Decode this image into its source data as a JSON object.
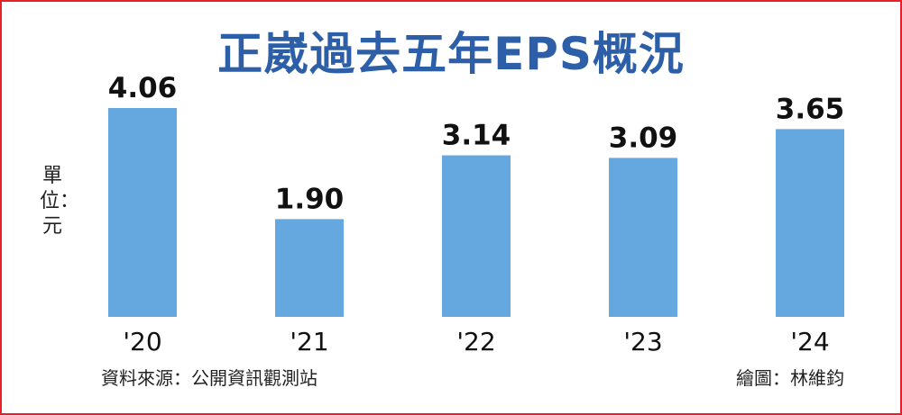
{
  "title": "正崴過去五年EPS概況",
  "unit_label": "單位：元",
  "source": "資料來源：公開資訊觀測站",
  "credit": "繪圖：林維鈞",
  "colors": {
    "bar": "#65a7df",
    "title": "#2d5fa8",
    "border": "#e8202a"
  },
  "chart_data": {
    "type": "bar",
    "title": "正崴過去五年EPS概況",
    "ylabel": "單位：元",
    "categories": [
      "'20",
      "'21",
      "'22",
      "'23",
      "'24"
    ],
    "values": [
      4.06,
      1.9,
      3.14,
      3.09,
      3.65
    ],
    "value_labels": [
      "4.06",
      "1.90",
      "3.14",
      "3.09",
      "3.65"
    ],
    "ylim": [
      0,
      4.06
    ],
    "grid": false
  }
}
